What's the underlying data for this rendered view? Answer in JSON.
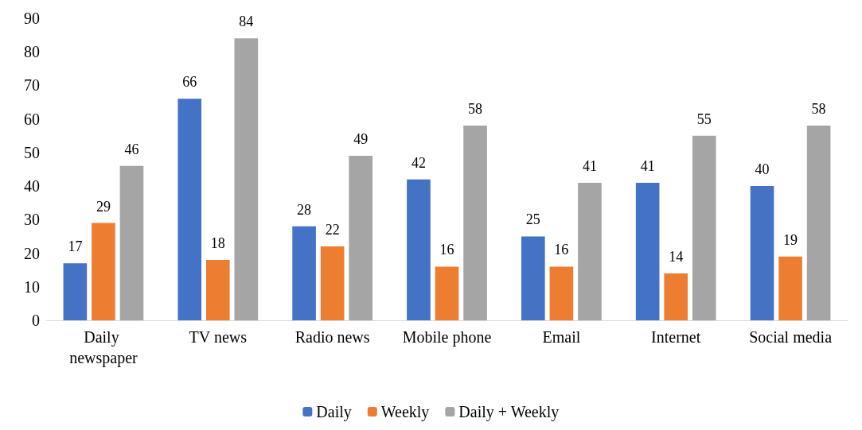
{
  "chart_data": {
    "type": "bar",
    "categories": [
      "Daily newspaper",
      "TV news",
      "Radio news",
      "Mobile phone",
      "Email",
      "Internet",
      "Social media"
    ],
    "series": [
      {
        "name": "Daily",
        "color": "#4472c4",
        "values": [
          17,
          66,
          28,
          42,
          25,
          41,
          40
        ]
      },
      {
        "name": "Weekly",
        "color": "#ed7d31",
        "values": [
          29,
          18,
          22,
          16,
          16,
          14,
          19
        ]
      },
      {
        "name": "Daily + Weekly",
        "color": "#a5a5a5",
        "values": [
          46,
          84,
          49,
          58,
          41,
          55,
          58
        ]
      }
    ],
    "ylim": [
      0,
      90
    ],
    "yticks": [
      0,
      10,
      20,
      30,
      40,
      50,
      60,
      70,
      80,
      90
    ],
    "grid": false,
    "legend": "bottom",
    "data_labels": true
  }
}
